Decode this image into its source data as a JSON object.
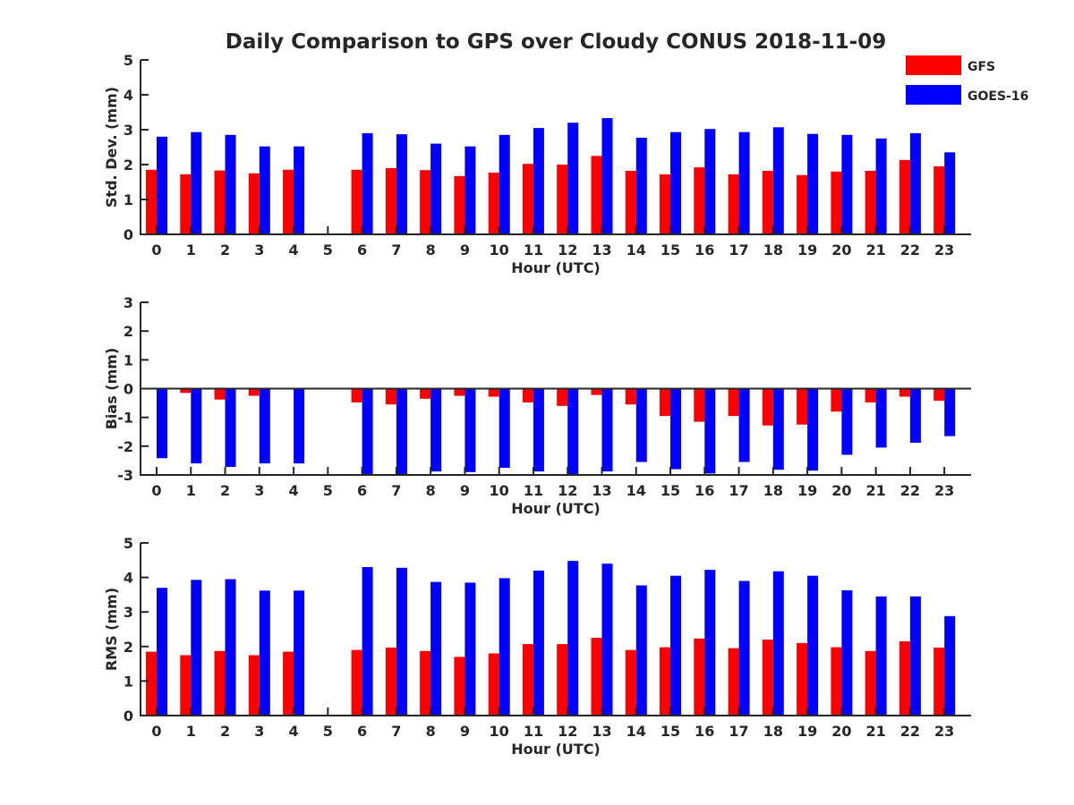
{
  "title": "Daily Comparison to GPS over Cloudy CONUS 2018-11-09",
  "legend": {
    "placement": "top-right",
    "entries": [
      {
        "name": "GFS",
        "color": "#ff0000"
      },
      {
        "name": "GOES-16",
        "color": "#0000ff"
      }
    ]
  },
  "chart_data": [
    {
      "type": "bar",
      "ylabel": "Std. Dev. (mm)",
      "xlabel": "Hour (UTC)",
      "ylim": [
        0,
        5
      ],
      "yticks": [
        0,
        1,
        2,
        3,
        4,
        5
      ],
      "categories": [
        "0",
        "1",
        "2",
        "3",
        "4",
        "5",
        "6",
        "7",
        "8",
        "9",
        "10",
        "11",
        "12",
        "13",
        "14",
        "15",
        "16",
        "17",
        "18",
        "19",
        "20",
        "21",
        "22",
        "23"
      ],
      "series": [
        {
          "name": "GFS",
          "color": "#ff0000",
          "values": [
            1.85,
            1.72,
            1.83,
            1.75,
            1.85,
            null,
            1.85,
            1.9,
            1.84,
            1.67,
            1.77,
            2.02,
            2.0,
            2.25,
            1.82,
            1.72,
            1.92,
            1.72,
            1.82,
            1.7,
            1.8,
            1.82,
            2.13,
            1.95
          ]
        },
        {
          "name": "GOES-16",
          "color": "#0000ff",
          "values": [
            2.8,
            2.93,
            2.85,
            2.52,
            2.52,
            null,
            2.9,
            2.87,
            2.6,
            2.52,
            2.85,
            3.05,
            3.2,
            3.33,
            2.77,
            2.93,
            3.02,
            2.93,
            3.07,
            2.88,
            2.85,
            2.75,
            2.9,
            2.35
          ]
        }
      ]
    },
    {
      "type": "bar",
      "ylabel": "Bias (mm)",
      "xlabel": "Hour (UTC)",
      "ylim": [
        -3,
        3
      ],
      "yticks": [
        -3,
        -2,
        -1,
        0,
        1,
        2,
        3
      ],
      "categories": [
        "0",
        "1",
        "2",
        "3",
        "4",
        "5",
        "6",
        "7",
        "8",
        "9",
        "10",
        "11",
        "12",
        "13",
        "14",
        "15",
        "16",
        "17",
        "18",
        "19",
        "20",
        "21",
        "22",
        "23"
      ],
      "series": [
        {
          "name": "GFS",
          "color": "#ff0000",
          "values": [
            0.0,
            -0.15,
            -0.38,
            -0.25,
            0.0,
            null,
            -0.48,
            -0.55,
            -0.35,
            -0.25,
            -0.28,
            -0.48,
            -0.6,
            -0.22,
            -0.55,
            -0.95,
            -1.15,
            -0.95,
            -1.28,
            -1.25,
            -0.8,
            -0.48,
            -0.28,
            -0.42
          ]
        },
        {
          "name": "GOES-16",
          "color": "#0000ff",
          "values": [
            -2.42,
            -2.6,
            -2.72,
            -2.6,
            -2.6,
            null,
            -3.0,
            -3.0,
            -2.88,
            -2.9,
            -2.75,
            -2.88,
            -3.0,
            -2.88,
            -2.55,
            -2.8,
            -2.95,
            -2.55,
            -2.82,
            -2.85,
            -2.3,
            -2.05,
            -1.88,
            -1.65
          ]
        }
      ]
    },
    {
      "type": "bar",
      "ylabel": "RMS (mm)",
      "xlabel": "Hour (UTC)",
      "ylim": [
        0,
        5
      ],
      "yticks": [
        0,
        1,
        2,
        3,
        4,
        5
      ],
      "categories": [
        "0",
        "1",
        "2",
        "3",
        "4",
        "5",
        "6",
        "7",
        "8",
        "9",
        "10",
        "11",
        "12",
        "13",
        "14",
        "15",
        "16",
        "17",
        "18",
        "19",
        "20",
        "21",
        "22",
        "23"
      ],
      "series": [
        {
          "name": "GFS",
          "color": "#ff0000",
          "values": [
            1.85,
            1.75,
            1.87,
            1.75,
            1.85,
            null,
            1.9,
            1.97,
            1.87,
            1.7,
            1.8,
            2.07,
            2.07,
            2.25,
            1.9,
            1.98,
            2.23,
            1.95,
            2.2,
            2.1,
            1.98,
            1.87,
            2.15,
            1.97
          ]
        },
        {
          "name": "GOES-16",
          "color": "#0000ff",
          "values": [
            3.7,
            3.93,
            3.95,
            3.62,
            3.62,
            null,
            4.3,
            4.28,
            3.87,
            3.85,
            3.98,
            4.2,
            4.48,
            4.4,
            3.77,
            4.05,
            4.22,
            3.9,
            4.18,
            4.05,
            3.63,
            3.45,
            3.45,
            2.88
          ]
        }
      ]
    }
  ]
}
